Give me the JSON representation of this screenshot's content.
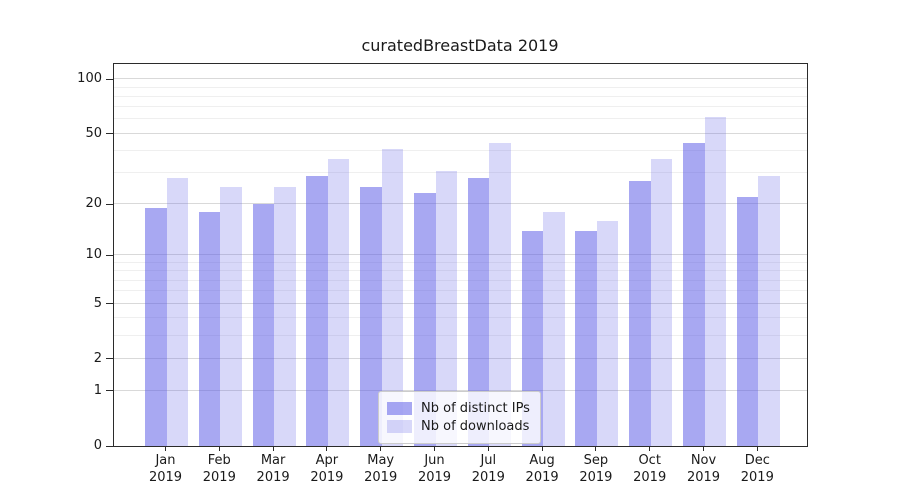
{
  "figure": {
    "title": "curatedBreastData 2019"
  },
  "chart_data": {
    "type": "bar",
    "title": "curatedBreastData 2019",
    "categories": [
      "Jan 2019",
      "Feb 2019",
      "Mar 2019",
      "Apr 2019",
      "May 2019",
      "Jun 2019",
      "Jul 2019",
      "Aug 2019",
      "Sep 2019",
      "Oct 2019",
      "Nov 2019",
      "Dec 2019"
    ],
    "x_tick_labels": [
      {
        "month": "Jan",
        "year": "2019"
      },
      {
        "month": "Feb",
        "year": "2019"
      },
      {
        "month": "Mar",
        "year": "2019"
      },
      {
        "month": "Apr",
        "year": "2019"
      },
      {
        "month": "May",
        "year": "2019"
      },
      {
        "month": "Jun",
        "year": "2019"
      },
      {
        "month": "Jul",
        "year": "2019"
      },
      {
        "month": "Aug",
        "year": "2019"
      },
      {
        "month": "Sep",
        "year": "2019"
      },
      {
        "month": "Oct",
        "year": "2019"
      },
      {
        "month": "Nov",
        "year": "2019"
      },
      {
        "month": "Dec",
        "year": "2019"
      }
    ],
    "series": [
      {
        "name": "Nb of distinct IPs",
        "color": "#a8a8f0",
        "color_rgba": "rgba(90,90,230,0.53)",
        "values": [
          19,
          18,
          20,
          29,
          25,
          23,
          28,
          14,
          14,
          27,
          44,
          22
        ]
      },
      {
        "name": "Nb of downloads",
        "color": "#d8d8f8",
        "color_rgba": "rgba(90,90,230,0.24)",
        "values": [
          28,
          25,
          25,
          36,
          41,
          31,
          44,
          18,
          16,
          36,
          62,
          29
        ]
      }
    ],
    "y_axis": {
      "scale": "log1p",
      "ticks": [
        0,
        1,
        2,
        5,
        10,
        20,
        50,
        100
      ],
      "minor_gridlines": [
        3,
        4,
        6,
        7,
        8,
        9,
        30,
        40,
        60,
        70,
        80,
        90
      ],
      "top_value": 122
    },
    "xlabel": "",
    "ylabel": "",
    "grid": true,
    "legend_position": "lower-center"
  }
}
